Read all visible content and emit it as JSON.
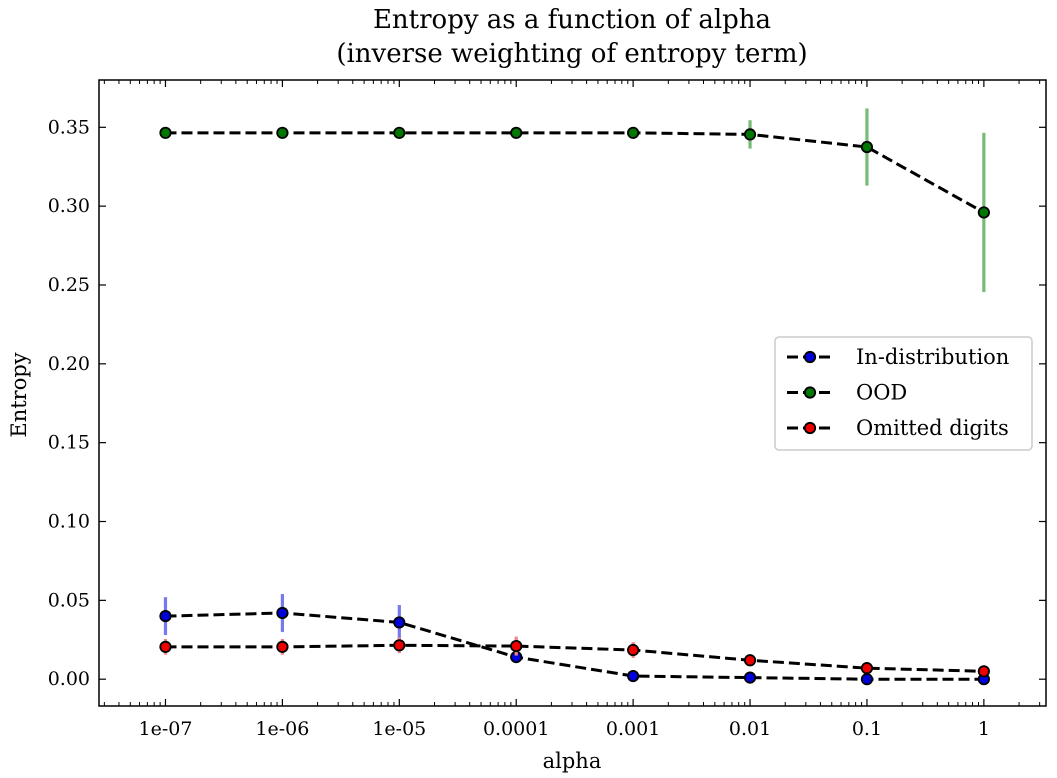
{
  "chart_data": {
    "type": "line",
    "title": "Entropy as a function of alpha",
    "subtitle": "(inverse weighting of entropy term)",
    "xlabel": "alpha",
    "ylabel": "Entropy",
    "x_scale": "log",
    "x": [
      1e-07,
      1e-06,
      1e-05,
      0.0001,
      0.001,
      0.01,
      0.1,
      1
    ],
    "x_tick_labels": [
      "1e-07",
      "1e-06",
      "1e-05",
      "0.0001",
      "0.001",
      "0.01",
      "0.1",
      "1"
    ],
    "y_ticks": [
      0.0,
      0.05,
      0.1,
      0.15,
      0.2,
      0.25,
      0.3,
      0.35
    ],
    "y_tick_labels": [
      "0.00",
      "0.05",
      "0.10",
      "0.15",
      "0.20",
      "0.25",
      "0.30",
      "0.35"
    ],
    "ylim": [
      -0.017,
      0.38
    ],
    "xlim": [
      2.7e-08,
      3.4
    ],
    "grid": false,
    "legend_position": "center-right",
    "line_style": "dashed",
    "line_color": "#000000",
    "series": [
      {
        "name": "In-distribution",
        "marker_color": "#0000dd",
        "error_color": "#7777ee",
        "values": [
          0.04,
          0.042,
          0.036,
          0.014,
          0.002,
          0.001,
          0.0,
          0.0
        ],
        "errors": [
          0.012,
          0.012,
          0.011,
          0.0,
          0.0,
          0.0,
          0.0,
          0.0
        ]
      },
      {
        "name": "OOD",
        "marker_color": "#007700",
        "error_color": "#77bb77",
        "values": [
          0.3465,
          0.3465,
          0.3465,
          0.3465,
          0.3465,
          0.3455,
          0.3375,
          0.296
        ],
        "errors": [
          0.0,
          0.0,
          0.0,
          0.0,
          0.0,
          0.009,
          0.0245,
          0.0505
        ]
      },
      {
        "name": "Omitted digits",
        "marker_color": "#ee0000",
        "error_color": "#ee8888",
        "values": [
          0.0205,
          0.0205,
          0.0215,
          0.021,
          0.0185,
          0.012,
          0.007,
          0.005
        ],
        "errors": [
          0.005,
          0.005,
          0.005,
          0.006,
          0.005,
          0.002,
          0.001,
          0.001
        ]
      }
    ]
  }
}
